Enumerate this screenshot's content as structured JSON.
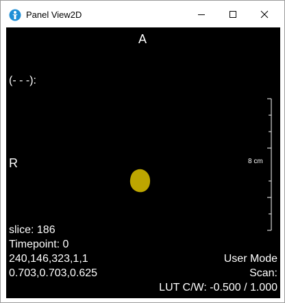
{
  "window": {
    "title": "Panel View2D"
  },
  "viewport": {
    "orientation_top": "A",
    "orientation_left": "R",
    "cursor_label": "(- - -):",
    "scale_label": "8 cm",
    "slice_text": "slice:  186",
    "timepoint_text": "Timepoint: 0",
    "coords_text": "240,146,323,1,1",
    "spacing_text": "0.703,0.703,0.625",
    "mode_text": "User Mode",
    "scan_text": "Scan:",
    "lut_text": "LUT C/W: -0.500 / 1.000",
    "background_color": "#000000",
    "segment_color": "#bda600"
  }
}
